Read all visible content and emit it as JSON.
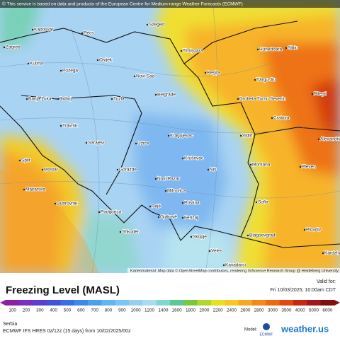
{
  "attribution": "© This service is based on data and products of the European Centre for Medium-range Weather Forecasts (ECMWF)",
  "map_credit": "Kartenmaterial: Map data © OpenStreetMap contributors, rendering GIScience Research Group @ Heidelberg University",
  "cities": [
    "Kaposvár",
    "Pécs",
    "Szeged",
    "Zagreb",
    "Osijek",
    "Kutina",
    "Požega",
    "Novi Sad",
    "Timișoara",
    "Hunedoara",
    "Sibiu",
    "Reșița",
    "Târgu Jiu",
    "Pitești",
    "Drobeta Turnu Severin",
    "Banja Luka",
    "Doboj",
    "Tuzla",
    "Belgrade",
    "Craiova",
    "Travnik",
    "Kragujevac",
    "Vidin",
    "Alexandria",
    "Sarajevo",
    "Užice",
    "Kruševac",
    "Split",
    "Goražde",
    "Niš",
    "Montana",
    "Pleven",
    "Mostar",
    "Novi Pazar",
    "Mitrovica",
    "Makarska",
    "Pristina",
    "Sofia",
    "Podgorica",
    "Ferizaj",
    "Dubrovnik",
    "Pejë",
    "Gjakovë",
    "Blagoevgrad",
    "Plovdiv",
    "Shkodër",
    "Skopje",
    "Veles",
    "Kardzhali",
    "Kavadarci"
  ],
  "legend": {
    "title": "Freezing Level (MASL)",
    "ticks": [
      100,
      200,
      300,
      400,
      500,
      600,
      700,
      800,
      900,
      1000,
      1200,
      1400,
      1600,
      1800,
      2000,
      2200,
      2400,
      2600,
      2800,
      3000,
      3500,
      4000,
      5000,
      6000
    ],
    "colors": [
      "#8e1fa6",
      "#7a2fc0",
      "#5a3fd0",
      "#3f52d8",
      "#3a6ee0",
      "#3d88e8",
      "#4aa0ee",
      "#63b4f2",
      "#7cc4f4",
      "#95d0f2",
      "#a9dcf0",
      "#7fd8d0",
      "#5cc898",
      "#79c83c",
      "#b0d82c",
      "#e6e020",
      "#f8c820",
      "#f8a820",
      "#f48818",
      "#ee6a12",
      "#e24810",
      "#c82810",
      "#a01818",
      "#801010"
    ]
  },
  "valid": {
    "label": "Valid for:",
    "time": "Fri 10/03/2025, 10:00am CDT"
  },
  "footer": {
    "region": "Serbia",
    "model_run": "ECMWF IFS HRES 0z/12z (15 days) from 10/02/2025/00z",
    "model_label": "Model:",
    "model": "ECMWF",
    "brand": "weather.us"
  }
}
